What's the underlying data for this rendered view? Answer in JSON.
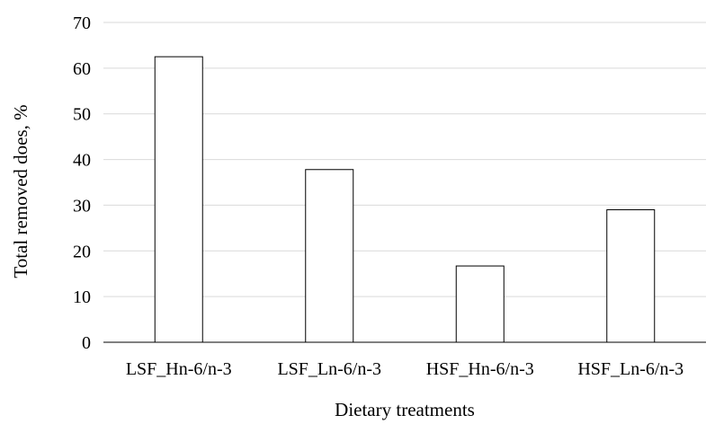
{
  "chart_data": {
    "type": "bar",
    "categories": [
      "LSF_Hn-6/n-3",
      "LSF_Ln-6/n-3",
      "HSF_Hn-6/n-3",
      "HSF_Ln-6/n-3"
    ],
    "values": [
      62.5,
      37.8,
      16.7,
      29.0
    ],
    "title": "",
    "xlabel": "Dietary treatments",
    "ylabel": "Total removed does, %",
    "ylim": [
      0,
      70
    ],
    "yticks": [
      0,
      10,
      20,
      30,
      40,
      50,
      60,
      70
    ],
    "grid": true,
    "legend": "none",
    "colors": {
      "bar_fill": "#ffffff",
      "bar_stroke": "#000000",
      "grid": "#d9d9d9"
    }
  }
}
